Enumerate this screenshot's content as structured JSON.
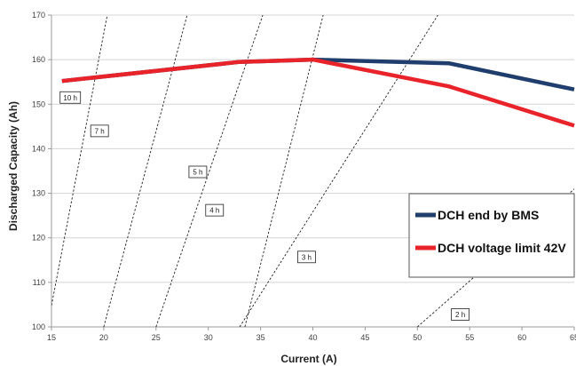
{
  "chart_data": {
    "type": "line",
    "xlabel": "Current (A)",
    "ylabel": "Discharged Capacity (Ah)",
    "xlim": [
      15,
      65
    ],
    "ylim": [
      100,
      170
    ],
    "x_ticks": [
      15,
      20,
      25,
      30,
      35,
      40,
      45,
      50,
      55,
      60,
      65
    ],
    "y_ticks": [
      100,
      110,
      120,
      130,
      140,
      150,
      160,
      170
    ],
    "grid": "horizontal",
    "legend": "bottom-right",
    "series": [
      {
        "name": "DCH end by BMS",
        "color": "#1f3e6e",
        "points": [
          [
            16,
            155.2
          ],
          [
            33,
            159.5
          ],
          [
            40,
            160.0
          ],
          [
            53,
            159.2
          ],
          [
            65,
            153.3
          ]
        ]
      },
      {
        "name": "DCH voltage limit 42V",
        "color": "#e8232a",
        "points": [
          [
            16,
            155.2
          ],
          [
            33,
            159.5
          ],
          [
            40,
            160.0
          ],
          [
            53,
            154.0
          ],
          [
            65,
            145.2
          ]
        ]
      }
    ],
    "iso_lines": [
      {
        "label": "10 h",
        "points": [
          [
            15,
            104.8
          ],
          [
            20.5,
            172
          ]
        ],
        "label_at": [
          16.8,
          151.5
        ]
      },
      {
        "label": "7 h",
        "points": [
          [
            20,
            100
          ],
          [
            28.2,
            172
          ]
        ],
        "label_at": [
          19.6,
          144
        ]
      },
      {
        "label": "5 h",
        "points": [
          [
            25,
            100
          ],
          [
            35.5,
            172
          ]
        ],
        "label_at": [
          29.0,
          134.8
        ]
      },
      {
        "label": "4 h",
        "points": [
          [
            33.5,
            100
          ],
          [
            41.2,
            172
          ]
        ],
        "label_at": [
          30.6,
          126.2
        ]
      },
      {
        "label": "3 h",
        "points": [
          [
            33,
            100
          ],
          [
            52.5,
            172
          ]
        ],
        "label_at": [
          39.4,
          115.7
        ]
      },
      {
        "label": "2 h",
        "points": [
          [
            50,
            100
          ],
          [
            65.5,
            132
          ]
        ],
        "label_at": [
          54.1,
          102.8
        ]
      }
    ]
  }
}
